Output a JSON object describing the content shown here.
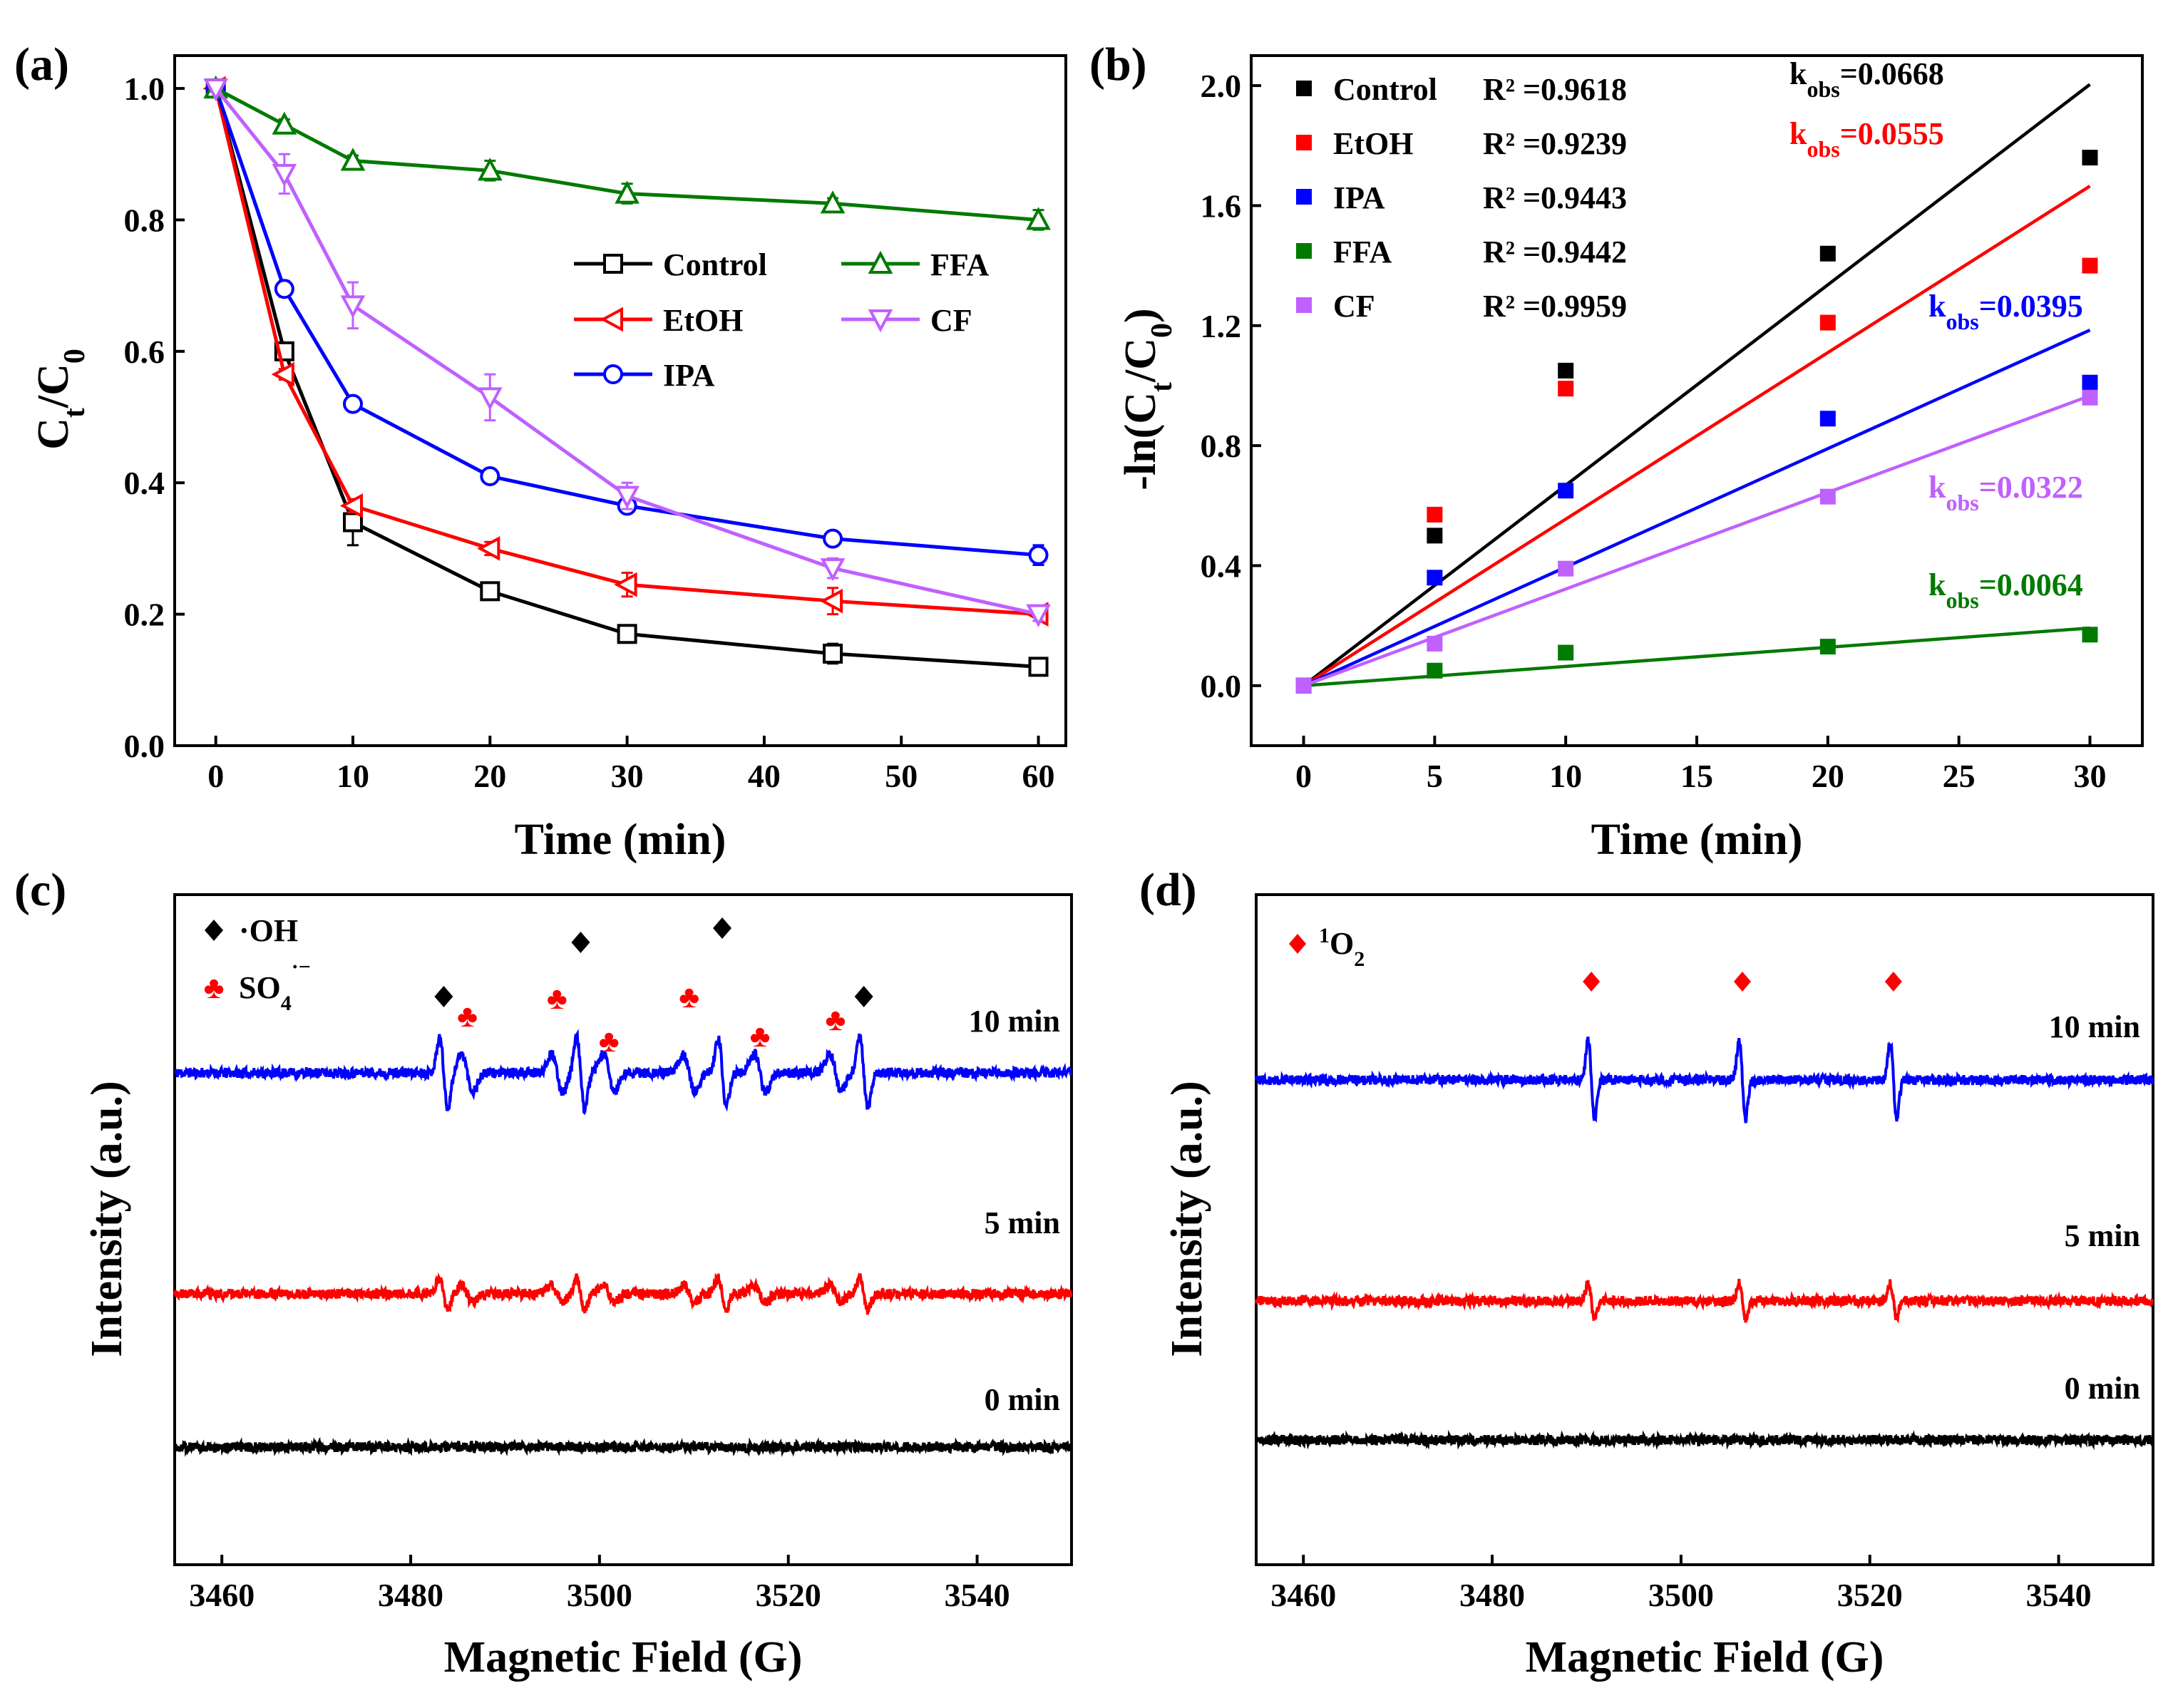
{
  "chart_data": [
    {
      "panel": "(a)",
      "type": "line",
      "xlabel": "Time (min)",
      "ylabel": "Ct/C0",
      "xlim": [
        -3,
        62
      ],
      "ylim": [
        0,
        1.05
      ],
      "xticks": [
        0,
        10,
        20,
        30,
        40,
        50,
        60
      ],
      "yticks": [
        0.0,
        0.2,
        0.4,
        0.6,
        0.8,
        1.0
      ],
      "x": [
        0,
        5,
        10,
        20,
        30,
        45,
        60
      ],
      "series": [
        {
          "name": "Control",
          "color": "#000000",
          "marker": "square",
          "values": [
            1.0,
            0.6,
            0.34,
            0.235,
            0.17,
            0.14,
            0.12
          ],
          "errors": [
            0.008,
            0.012,
            0.035,
            0.008,
            0.008,
            0.015,
            0.01
          ]
        },
        {
          "name": "EtOH",
          "color": "#ff0000",
          "marker": "left-triangle",
          "values": [
            1.0,
            0.565,
            0.365,
            0.3,
            0.245,
            0.22,
            0.2
          ],
          "errors": [
            0.005,
            0.008,
            0.01,
            0.01,
            0.018,
            0.02,
            0.01
          ]
        },
        {
          "name": "IPA",
          "color": "#0000ff",
          "marker": "circle",
          "values": [
            1.0,
            0.695,
            0.52,
            0.41,
            0.365,
            0.315,
            0.29
          ],
          "errors": [
            0.005,
            0.012,
            0.008,
            0.008,
            0.008,
            0.008,
            0.015
          ]
        },
        {
          "name": "FFA",
          "color": "#007a00",
          "marker": "up-triangle",
          "values": [
            1.0,
            0.945,
            0.89,
            0.875,
            0.84,
            0.825,
            0.8
          ],
          "errors": [
            0.005,
            0.008,
            0.008,
            0.015,
            0.015,
            0.008,
            0.015
          ]
        },
        {
          "name": "CF",
          "color": "#c060ff",
          "marker": "down-triangle",
          "values": [
            1.0,
            0.87,
            0.67,
            0.53,
            0.38,
            0.27,
            0.2
          ],
          "errors": [
            0.005,
            0.03,
            0.035,
            0.035,
            0.02,
            0.015,
            0.01
          ]
        }
      ]
    },
    {
      "panel": "(b)",
      "type": "scatter",
      "xlabel": "Time (min)",
      "ylabel": "-ln(Ct/C0)",
      "xlim": [
        -2,
        32
      ],
      "ylim": [
        -0.2,
        2.1
      ],
      "xticks": [
        0,
        5,
        10,
        15,
        20,
        25,
        30
      ],
      "yticks": [
        0.0,
        0.4,
        0.8,
        1.2,
        1.6,
        2.0
      ],
      "x": [
        0,
        5,
        10,
        20,
        30
      ],
      "series": [
        {
          "name": "Control",
          "color": "#000000",
          "r2": "R² =0.9618",
          "k": "0.0668",
          "slope": 0.0668,
          "values": [
            0,
            0.5,
            1.05,
            1.44,
            1.76
          ]
        },
        {
          "name": "EtOH",
          "color": "#ff0000",
          "r2": "R² =0.9239",
          "k": "0.0555",
          "slope": 0.0555,
          "values": [
            0,
            0.57,
            0.99,
            1.21,
            1.4
          ]
        },
        {
          "name": "IPA",
          "color": "#0000ff",
          "r2": "R² =0.9443",
          "k": "0.0395",
          "slope": 0.0395,
          "values": [
            0,
            0.36,
            0.65,
            0.89,
            1.01
          ]
        },
        {
          "name": "FFA",
          "color": "#007a00",
          "r2": "R² =0.9442",
          "k": "0.0064",
          "slope": 0.0064,
          "values": [
            0,
            0.05,
            0.11,
            0.13,
            0.17
          ]
        },
        {
          "name": "CF",
          "color": "#c060ff",
          "r2": "R² =0.9959",
          "k": "0.0322",
          "slope": 0.0322,
          "values": [
            0,
            0.14,
            0.39,
            0.63,
            0.96
          ]
        }
      ]
    },
    {
      "panel": "(c)",
      "type": "line",
      "xlabel": "Magnetic Field (G)",
      "ylabel": "Intensity (a.u.)",
      "xlim": [
        3455,
        3550
      ],
      "xticks": [
        3460,
        3480,
        3500,
        3520,
        3540
      ],
      "series": [
        {
          "name": "10 min",
          "color": "#0000ff",
          "scale": 1.0
        },
        {
          "name": "5 min",
          "color": "#ff0000",
          "scale": 0.45
        },
        {
          "name": "0 min",
          "color": "#000000",
          "scale": 0.0
        }
      ],
      "oh_peaks": [
        3483.5,
        3498,
        3513,
        3528
      ],
      "so4_peaks": [
        3486,
        3495.5,
        3501,
        3509.5,
        3517,
        3525
      ],
      "legend": {
        "oh": "·OH",
        "so4_base": "SO",
        "so4_sub": "4",
        "so4_sup": "·−"
      }
    },
    {
      "panel": "(d)",
      "type": "line",
      "xlabel": "Magnetic Field (G)",
      "ylabel": "Intensity (a.u.)",
      "xlim": [
        3455,
        3550
      ],
      "xticks": [
        3460,
        3480,
        3500,
        3520,
        3540
      ],
      "series": [
        {
          "name": "10 min",
          "color": "#0000ff",
          "scale": 1.0
        },
        {
          "name": "5 min",
          "color": "#ff0000",
          "scale": 0.45
        },
        {
          "name": "0 min",
          "color": "#000000",
          "scale": 0.0
        }
      ],
      "peaks": [
        3490.5,
        3506.5,
        3522.5
      ],
      "legend": {
        "sup": "1",
        "base": "O",
        "sub": "2"
      }
    }
  ]
}
